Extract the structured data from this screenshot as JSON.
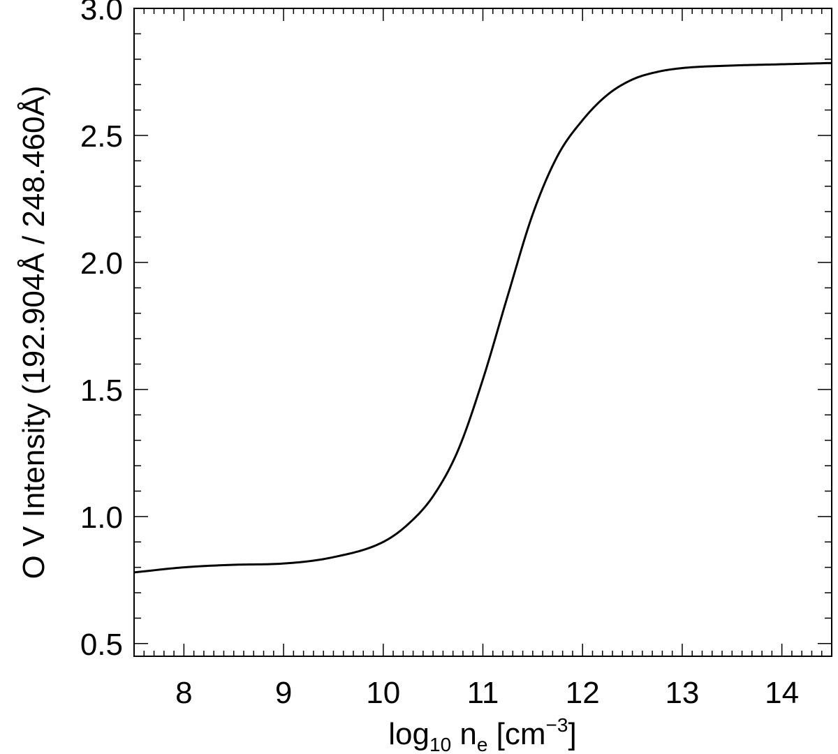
{
  "chart_data": {
    "type": "line",
    "xlabel": {
      "main": "log",
      "sub": "10",
      "var": " n",
      "var_sub": "e",
      "unit_open": " [cm",
      "unit_sup": "−3",
      "unit_close": "]"
    },
    "ylabel": "O V Intensity (192.904Å / 248.460Å)",
    "xlim": [
      7.5,
      14.5
    ],
    "ylim": [
      0.45,
      3.0
    ],
    "xticks": [
      8,
      9,
      10,
      11,
      12,
      13,
      14
    ],
    "xtick_labels": [
      "8",
      "9",
      "10",
      "11",
      "12",
      "13",
      "14"
    ],
    "yticks": [
      0.5,
      1.0,
      1.5,
      2.0,
      2.5,
      3.0
    ],
    "ytick_labels": [
      "0.5",
      "1.0",
      "1.5",
      "2.0",
      "2.5",
      "3.0"
    ],
    "grid": false,
    "series": [
      {
        "x": [
          7.5,
          8.0,
          8.5,
          9.0,
          9.5,
          10.0,
          10.25,
          10.5,
          10.75,
          11.0,
          11.25,
          11.5,
          11.75,
          12.0,
          12.25,
          12.5,
          12.75,
          13.0,
          13.5,
          14.0,
          14.5
        ],
        "y": [
          0.78,
          0.8,
          0.81,
          0.815,
          0.84,
          0.9,
          0.97,
          1.08,
          1.26,
          1.54,
          1.87,
          2.19,
          2.42,
          2.56,
          2.66,
          2.72,
          2.75,
          2.765,
          2.775,
          2.78,
          2.785
        ]
      }
    ]
  }
}
